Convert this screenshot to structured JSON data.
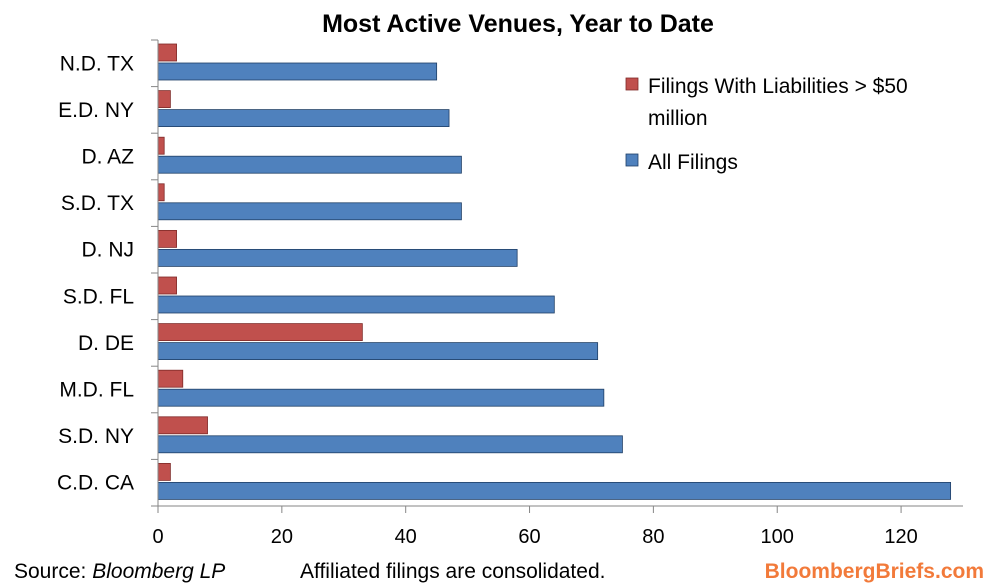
{
  "chart_data": {
    "type": "bar",
    "orientation": "horizontal",
    "title": "Most Active Venues, Year to Date",
    "categories": [
      "N.D. TX",
      "E.D. NY",
      "D. AZ",
      "S.D. TX",
      "D. NJ",
      "S.D. FL",
      "D. DE",
      "M.D. FL",
      "S.D. NY",
      "C.D. CA"
    ],
    "series": [
      {
        "name": "Filings With Liabilities > $50 million",
        "color": "#c0504d",
        "values": [
          3,
          2,
          1,
          1,
          3,
          3,
          33,
          4,
          8,
          2
        ]
      },
      {
        "name": "All Filings",
        "color": "#4f81bd",
        "values": [
          45,
          47,
          49,
          49,
          58,
          64,
          71,
          72,
          75,
          128
        ]
      }
    ],
    "xlim": [
      0,
      130
    ],
    "xticks": [
      0,
      20,
      40,
      60,
      80,
      100,
      120
    ],
    "grid": false,
    "legend_position": "top-right"
  },
  "legend": {
    "item1_line1": "Filings With Liabilities > $50",
    "item1_line2": "million",
    "item2": "All Filings"
  },
  "footer": {
    "source_prefix": "Source: ",
    "source_name": "Bloomberg LP",
    "note": "Affiliated filings are consolidated.",
    "brand": "BloombergBriefs.com"
  }
}
